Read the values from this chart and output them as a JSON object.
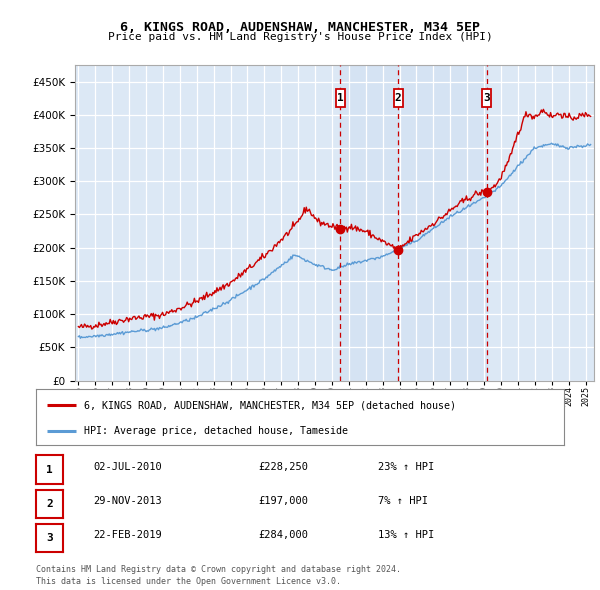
{
  "title": "6, KINGS ROAD, AUDENSHAW, MANCHESTER, M34 5EP",
  "subtitle": "Price paid vs. HM Land Registry's House Price Index (HPI)",
  "ylabel_ticks": [
    0,
    50000,
    100000,
    150000,
    200000,
    250000,
    300000,
    350000,
    400000,
    450000
  ],
  "ylim": [
    0,
    475000
  ],
  "xlim_start": 1994.8,
  "xlim_end": 2025.5,
  "sale_dates": [
    2010.5,
    2013.92,
    2019.15
  ],
  "sale_prices": [
    228250,
    197000,
    284000
  ],
  "sale_labels": [
    "1",
    "2",
    "3"
  ],
  "sale_info": [
    {
      "label": "1",
      "date": "02-JUL-2010",
      "price": "£228,250",
      "hpi": "23% ↑ HPI"
    },
    {
      "label": "2",
      "date": "29-NOV-2013",
      "price": "£197,000",
      "hpi": "7% ↑ HPI"
    },
    {
      "label": "3",
      "date": "22-FEB-2019",
      "price": "£284,000",
      "hpi": "13% ↑ HPI"
    }
  ],
  "legend_entries": [
    {
      "label": "6, KINGS ROAD, AUDENSHAW, MANCHESTER, M34 5EP (detached house)",
      "color": "#cc0000"
    },
    {
      "label": "HPI: Average price, detached house, Tameside",
      "color": "#5b9bd5"
    }
  ],
  "footer1": "Contains HM Land Registry data © Crown copyright and database right 2024.",
  "footer2": "This data is licensed under the Open Government Licence v3.0.",
  "plot_bg": "#dce8f5",
  "shade_bg": "#c8dcf0",
  "grid_color": "#ffffff",
  "red_line_color": "#cc0000",
  "blue_line_color": "#5b9bd5"
}
